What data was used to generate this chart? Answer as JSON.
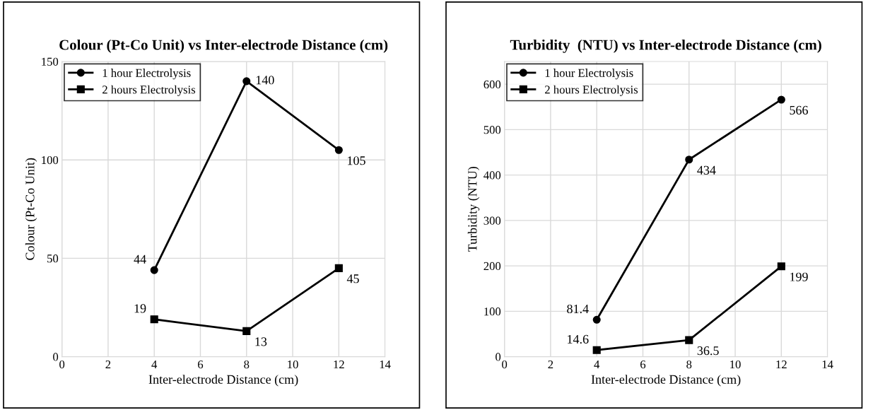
{
  "chart_data": [
    {
      "type": "line",
      "title": "Colour (Pt-Co Unit) vs Inter-electrode Distance (cm)",
      "xlabel": "Inter-electrode Distance (cm)",
      "ylabel": "Colour (Pt-Co Unit)",
      "x": [
        4,
        8,
        12
      ],
      "series": [
        {
          "name": "1 hour Electrolysis",
          "color": "#000000",
          "values": [
            44,
            140,
            105
          ],
          "marker": "circle"
        },
        {
          "name": "2 hours Electrolysis",
          "color": "#000000",
          "values": [
            19,
            13,
            45
          ],
          "marker": "square"
        }
      ],
      "xlim": [
        0,
        14
      ],
      "xticks": [
        0,
        2,
        4,
        6,
        8,
        10,
        12,
        14
      ],
      "ylim": [
        0,
        150
      ],
      "yticks": [
        0,
        50,
        100,
        150
      ],
      "grid": true,
      "legend": "top left",
      "data_labels": true,
      "line_style": "solid"
    },
    {
      "type": "line",
      "title": "Turbidity  (NTU) vs Inter-electrode Distance (cm)",
      "xlabel": "Inter-electrode Distance (cm)",
      "ylabel": "Turbidity (NTU)",
      "x": [
        4,
        8,
        12
      ],
      "series": [
        {
          "name": "1 hour Electrolysis",
          "color": "#000000",
          "values": [
            81.4,
            434,
            566
          ],
          "marker": "circle"
        },
        {
          "name": "2 hours Electrolysis",
          "color": "#000000",
          "values": [
            14.6,
            36.5,
            199
          ],
          "marker": "square"
        }
      ],
      "xlim": [
        0,
        14
      ],
      "xticks": [
        0,
        2,
        4,
        6,
        8,
        10,
        12,
        14
      ],
      "ylim": [
        0,
        650
      ],
      "yticks": [
        0,
        100,
        200,
        300,
        400,
        500,
        600
      ],
      "grid": true,
      "legend": "top left",
      "data_labels": true,
      "line_style": "solid"
    }
  ]
}
